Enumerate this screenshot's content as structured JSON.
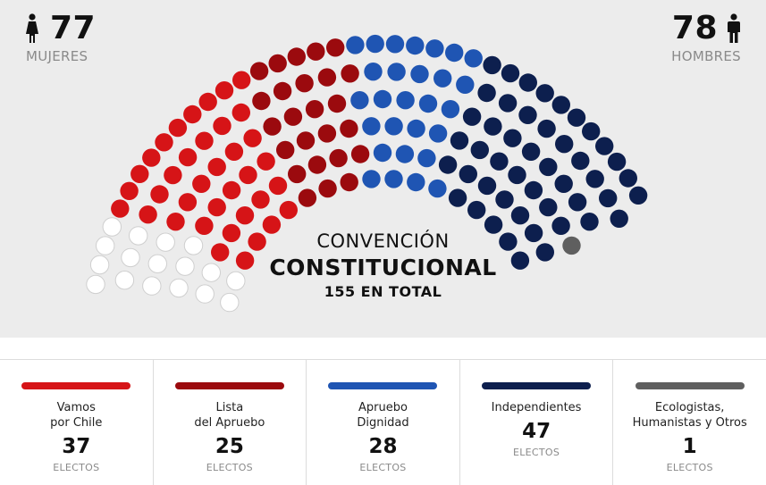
{
  "header": {
    "women": {
      "count": "77",
      "label": "MUJERES",
      "icon": "female-person-icon"
    },
    "men": {
      "count": "78",
      "label": "HOMBRES",
      "icon": "male-person-icon"
    }
  },
  "center": {
    "line1": "CONVENCIÓN",
    "line2": "CONSTITUCIONAL",
    "line3": "155 EN TOTAL"
  },
  "chart_data": {
    "type": "parliament",
    "total": 155,
    "categories": [
      "Vamos por Chile",
      "Lista del Apruebo",
      "Apruebo Dignidad",
      "Independientes",
      "Ecologistas, Humanistas y Otros"
    ],
    "values": [
      37,
      25,
      28,
      47,
      1
    ],
    "empty_seats": 17,
    "colors": {
      "vamos": "#d61417",
      "apruebo": "#9b0a0e",
      "dignidad": "#1f55b3",
      "independientes": "#0d1f4e",
      "otros": "#5f5f5f",
      "empty": "#ffffff"
    }
  },
  "parties": [
    {
      "name": "Vamos\npor Chile",
      "seats": "37",
      "elected": "ELECTOS",
      "color": "#d61417"
    },
    {
      "name": "Lista\ndel Apruebo",
      "seats": "25",
      "elected": "ELECTOS",
      "color": "#9b0a0e"
    },
    {
      "name": "Apruebo\nDignidad",
      "seats": "28",
      "elected": "ELECTOS",
      "color": "#1f55b3"
    },
    {
      "name": "Independientes",
      "seats": "47",
      "elected": "ELECTOS",
      "color": "#0d1f4e"
    },
    {
      "name": "Ecologistas,\nHumanistas y Otros",
      "seats": "1",
      "elected": "ELECTOS",
      "color": "#5f5f5f"
    }
  ]
}
